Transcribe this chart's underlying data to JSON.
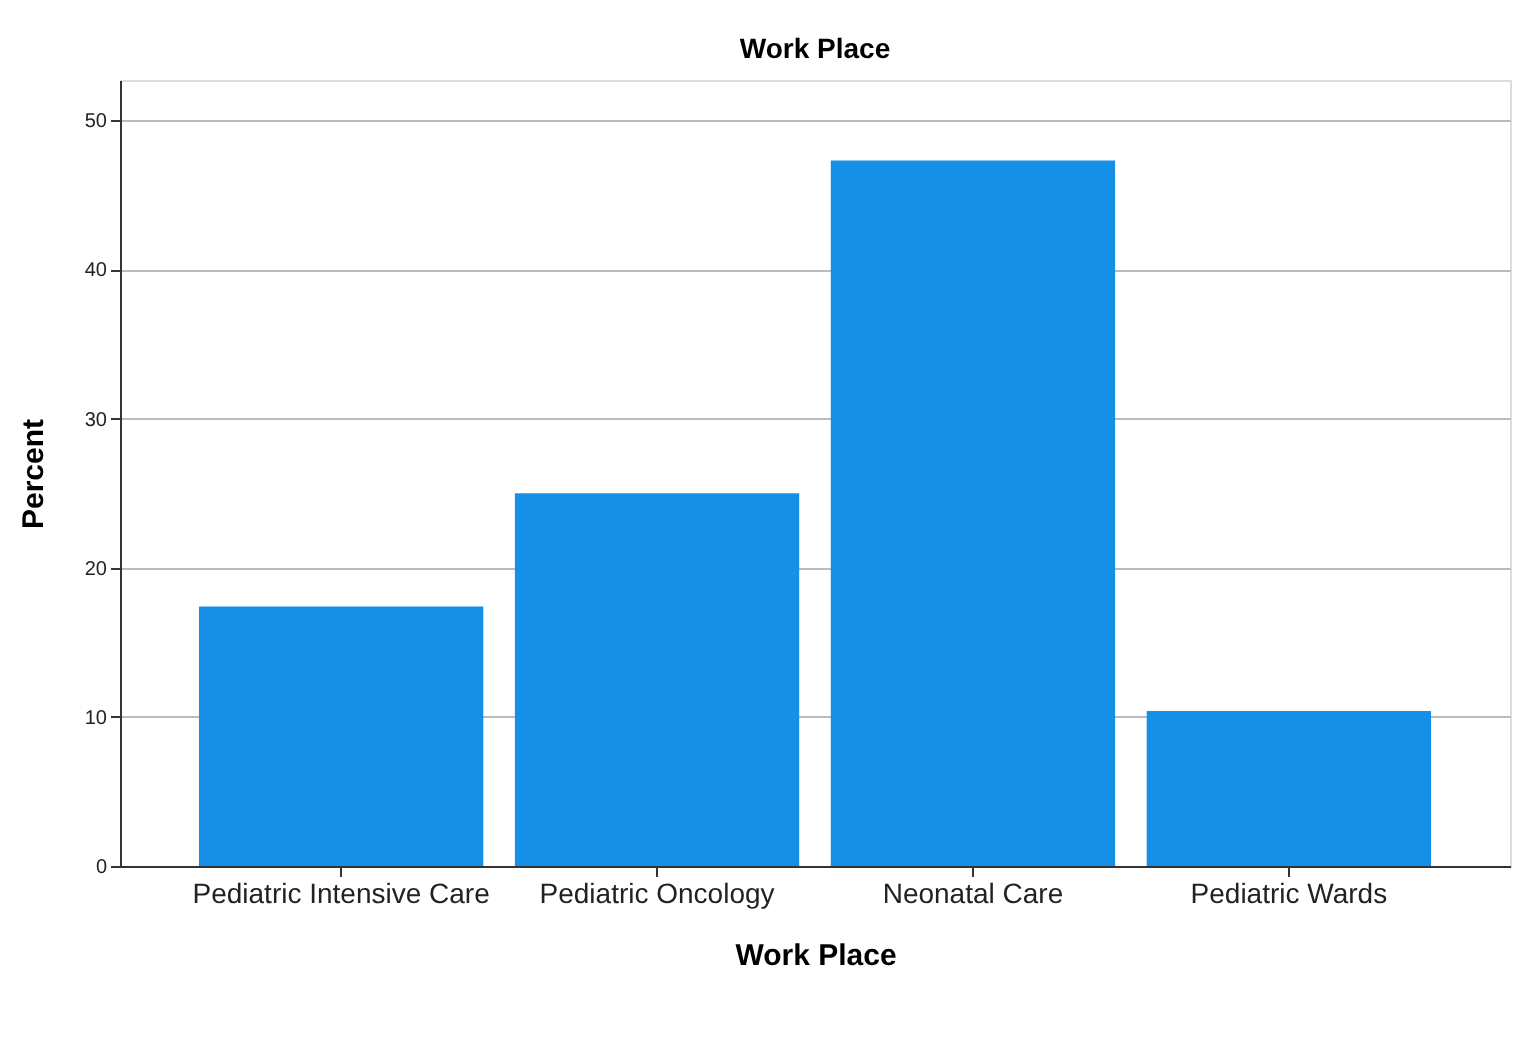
{
  "chart_data": {
    "type": "bar",
    "title": "Work Place",
    "xlabel": "Work Place",
    "ylabel": "Percent",
    "categories": [
      "Pediatric Intensive Care",
      "Pediatric Oncology",
      "Neonatal Care",
      "Pediatric Wards"
    ],
    "values": [
      17.4,
      25.0,
      47.3,
      10.4
    ],
    "color": "#1690e6",
    "ylim": [
      0,
      52.7
    ],
    "yticks": [
      0,
      10,
      20,
      30,
      40,
      50
    ],
    "grid": "y"
  }
}
